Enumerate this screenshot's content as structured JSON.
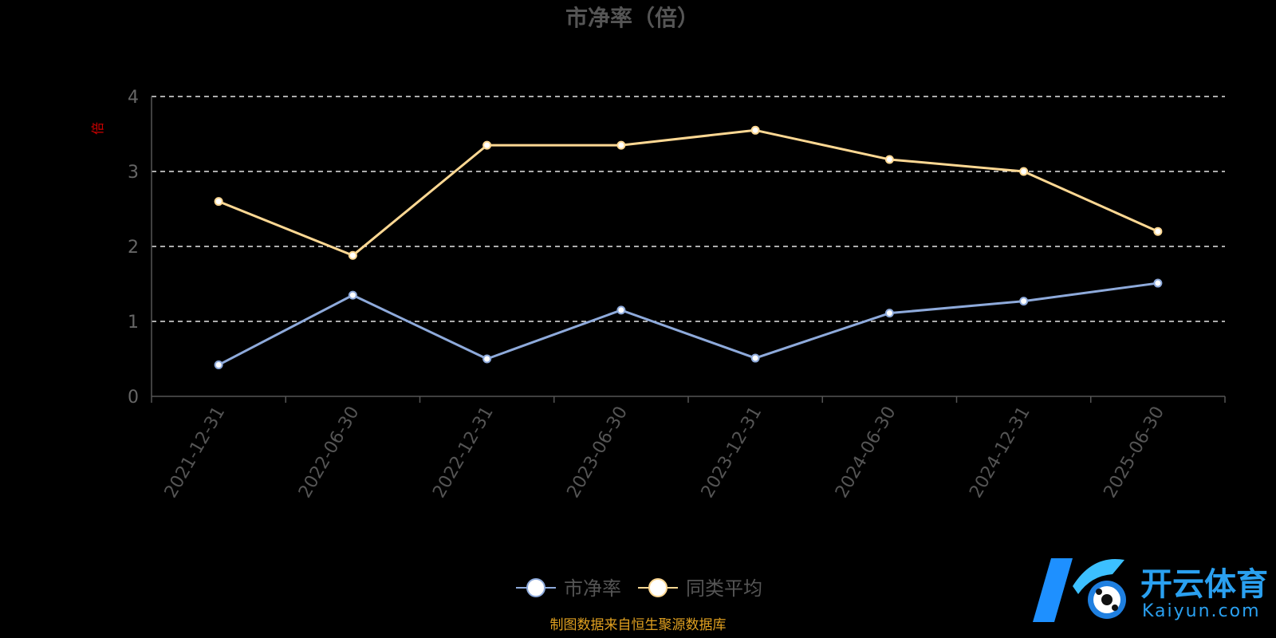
{
  "chart_data": {
    "type": "line",
    "title": "市净率（倍）",
    "ylabel": "倍",
    "xlabel": "",
    "categories": [
      "2021-12-31",
      "2022-06-30",
      "2022-12-31",
      "2023-06-30",
      "2023-12-31",
      "2024-06-30",
      "2024-12-31",
      "2025-06-30"
    ],
    "ylim": [
      0,
      4
    ],
    "yticks": [
      0,
      1,
      2,
      3,
      4
    ],
    "grid": true,
    "legend_position": "bottom",
    "series": [
      {
        "name": "市净率",
        "color": "#8eaadb",
        "values": [
          0.42,
          1.35,
          0.5,
          1.15,
          0.51,
          1.11,
          1.27,
          1.51
        ]
      },
      {
        "name": "同类平均",
        "color": "#fed893",
        "values": [
          2.6,
          1.88,
          3.35,
          3.35,
          3.55,
          3.16,
          3.0,
          2.2
        ]
      }
    ]
  },
  "source_note": "制图数据来自恒生聚源数据库",
  "watermark": {
    "cn": "开云体育",
    "en": "Kaiyun.com"
  }
}
